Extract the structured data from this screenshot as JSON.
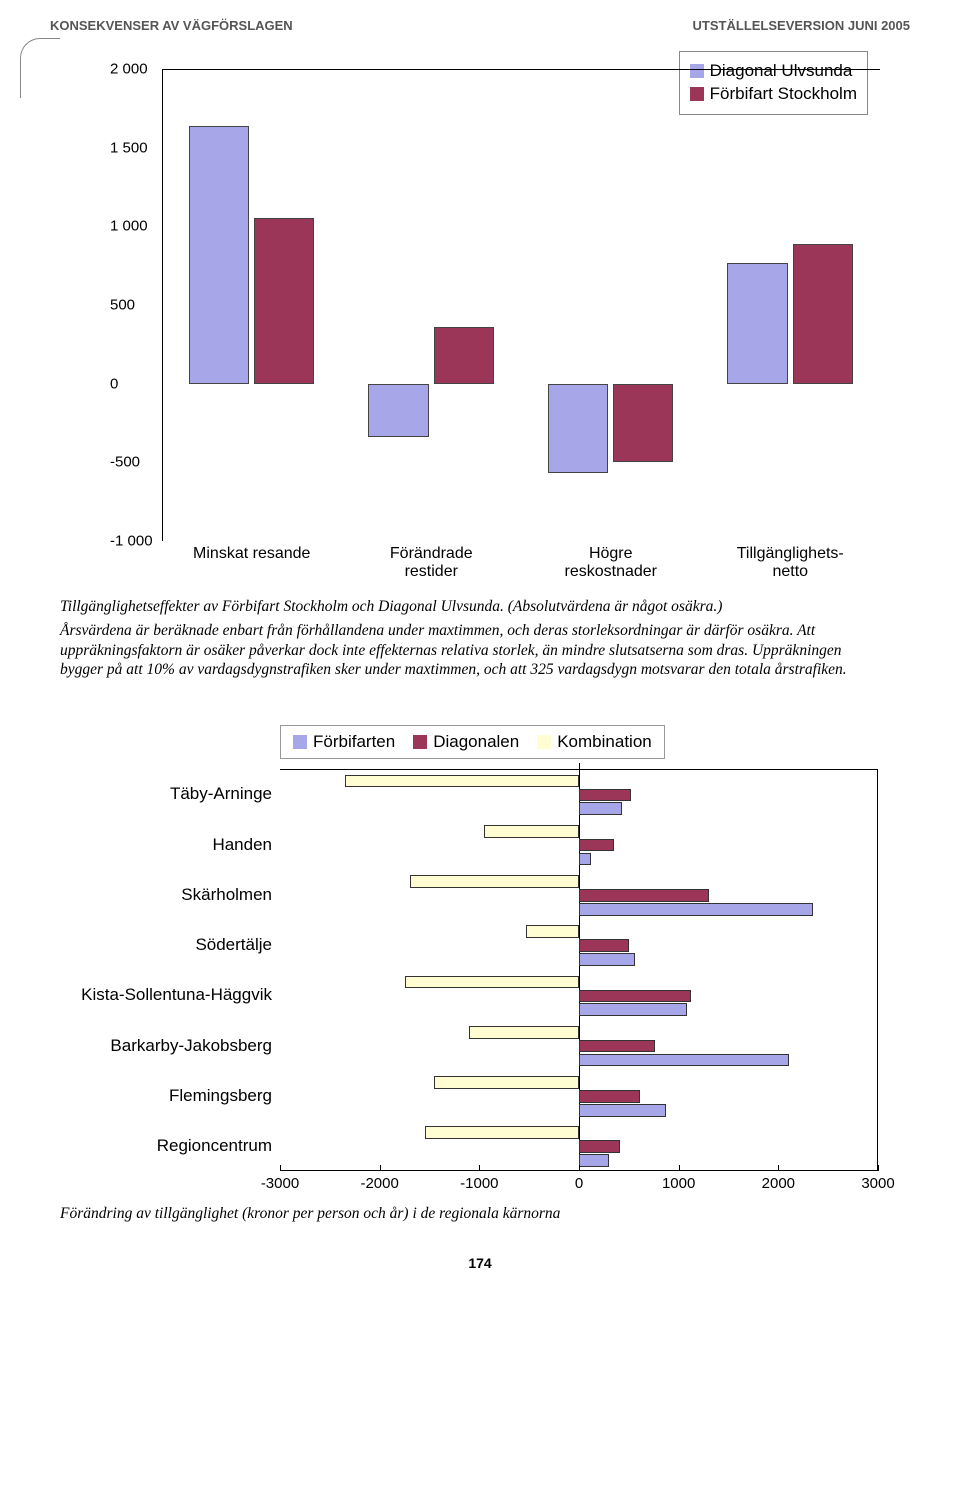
{
  "header": {
    "left": "KONSEKVENSER AV VÄGFÖRSLAGEN",
    "right": "UTSTÄLLELSEVERSION JUNI 2005"
  },
  "chart1": {
    "type": "bar",
    "categories": [
      "Minskat resande",
      "Förändrade restider",
      "Högre reskostnader",
      "Tillgänglighets- netto"
    ],
    "category_lines": [
      [
        "Minskat resande"
      ],
      [
        "Förändrade",
        "restider"
      ],
      [
        "Högre",
        "reskostnader"
      ],
      [
        "Tillgänglighets-",
        "netto"
      ]
    ],
    "series": [
      {
        "name": "Diagonal Ulvsunda",
        "color": "#a6a6e8",
        "values": [
          1640,
          -340,
          -570,
          770
        ]
      },
      {
        "name": "Förbifart Stockholm",
        "color": "#9b3659",
        "values": [
          1050,
          360,
          -500,
          890
        ]
      }
    ],
    "ylim": [
      -1000,
      2000
    ],
    "ytick_step": 500,
    "label_fontsize": 15,
    "legend_fontsize": 17,
    "background_color": "#ffffff",
    "bar_border": "#444444"
  },
  "caption1": {
    "p1": "Tillgänglighetseffekter av Förbifart Stockholm och Diagonal Ulvsunda. (Absolutvärdena är något osäkra.)",
    "p2": "Årsvärdena är beräknade enbart från förhållandena under maxtimmen, och deras storleksordningar är därför osäkra. Att uppräkningsfaktorn är osäker påverkar dock inte effekternas relativa storlek, än mindre slutsatserna som dras. Uppräkningen bygger på att 10% av vardagsdygnstrafiken sker under maxtimmen, och att 325 vardagsdygn motsvarar den totala årstrafiken."
  },
  "chart2": {
    "type": "horizontal-bar",
    "xlim": [
      -3000,
      3000
    ],
    "xtick_step": 1000,
    "categories": [
      "Täby-Arninge",
      "Handen",
      "Skärholmen",
      "Södertälje",
      "Kista-Sollentuna-Häggvik",
      "Barkarby-Jakobsberg",
      "Flemingsberg",
      "Regioncentrum"
    ],
    "series": [
      {
        "name": "Förbifarten",
        "color": "#a6a6e8"
      },
      {
        "name": "Diagonalen",
        "color": "#9b3659"
      },
      {
        "name": "Kombination",
        "color": "#fffdd1"
      }
    ],
    "values": {
      "Täby-Arninge": {
        "komb": -2350,
        "diag": 520,
        "forbi": 430
      },
      "Handen": {
        "komb": -950,
        "diag": 350,
        "forbi": 120
      },
      "Skärholmen": {
        "komb": -1700,
        "diag": 1300,
        "forbi": 2350
      },
      "Södertälje": {
        "komb": -530,
        "diag": 500,
        "forbi": 560
      },
      "Kista-Sollentuna-Häggvik": {
        "komb": -1750,
        "diag": 1120,
        "forbi": 1080
      },
      "Barkarby-Jakobsberg": {
        "komb": -1100,
        "diag": 760,
        "forbi": 2110
      },
      "Flemingsberg": {
        "komb": -1450,
        "diag": 610,
        "forbi": 870
      },
      "Regioncentrum": {
        "komb": -1550,
        "diag": 410,
        "forbi": 300
      }
    },
    "background_color": "#ffffff",
    "bar_border": "#333333"
  },
  "caption2": "Förändring av tillgänglighet (kronor per person och år) i de regionala kärnorna",
  "page_number": "174"
}
